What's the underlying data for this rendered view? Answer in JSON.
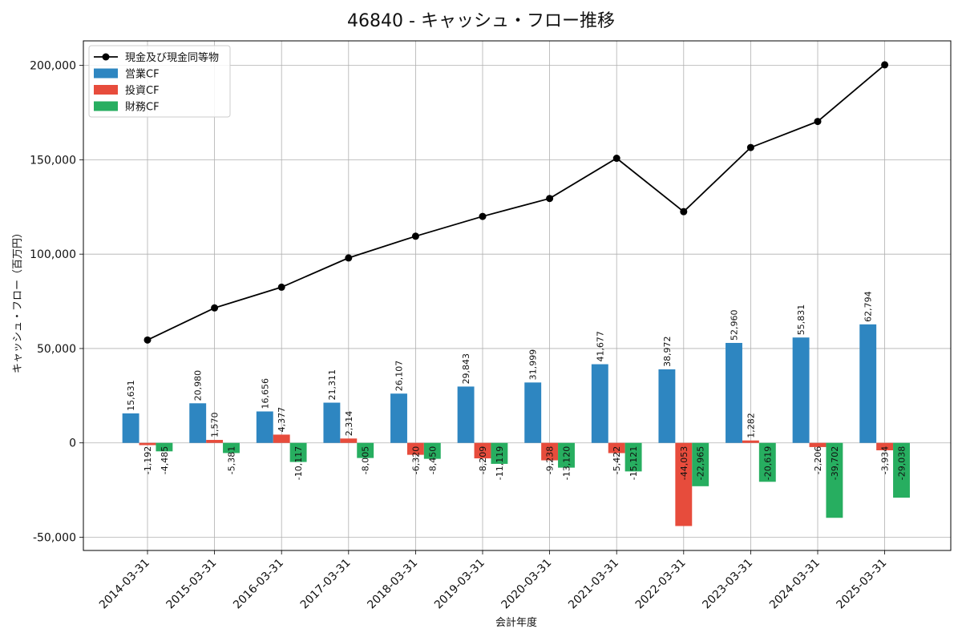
{
  "chart_data": {
    "type": "bar",
    "title": "46840 - キャッシュ・フロー推移",
    "xlabel": "会計年度",
    "ylabel": "キャッシュ・フロー（百万円）",
    "categories": [
      "2014-03-31",
      "2015-03-31",
      "2016-03-31",
      "2017-03-31",
      "2018-03-31",
      "2019-03-31",
      "2020-03-31",
      "2021-03-31",
      "2022-03-31",
      "2023-03-31",
      "2024-03-31",
      "2025-03-31"
    ],
    "ylim": [
      -57000,
      213000
    ],
    "yticks": [
      -50000,
      0,
      50000,
      100000,
      150000,
      200000
    ],
    "ytick_labels": [
      "-50,000",
      "0",
      "50,000",
      "100,000",
      "150,000",
      "200,000"
    ],
    "grid": true,
    "legend_position": "top-left",
    "series": [
      {
        "name": "営業CF",
        "kind": "bar",
        "color": "#2e86c1",
        "values": [
          15631,
          20980,
          16656,
          21311,
          26107,
          29843,
          31999,
          41677,
          38972,
          52960,
          55831,
          62794
        ],
        "labels": [
          "15,631",
          "20,980",
          "16,656",
          "21,311",
          "26,107",
          "29,843",
          "31,999",
          "41,677",
          "38,972",
          "52,960",
          "55,831",
          "62,794"
        ]
      },
      {
        "name": "投資CF",
        "kind": "bar",
        "color": "#e74c3c",
        "values": [
          -1192,
          1570,
          4377,
          2314,
          -6320,
          -8209,
          -9238,
          -5422,
          -44053,
          1282,
          -2206,
          -3934
        ],
        "labels": [
          "-1,192",
          "1,570",
          "4,377",
          "2,314",
          "-6,320",
          "-8,209",
          "-9,238",
          "-5,422",
          "-44,053",
          "1,282",
          "-2,206",
          "-3,934"
        ]
      },
      {
        "name": "財務CF",
        "kind": "bar",
        "color": "#27ae60",
        "values": [
          -4485,
          -5381,
          -10117,
          -8005,
          -8450,
          -11119,
          -13120,
          -15121,
          -22965,
          -20619,
          -39702,
          -29038
        ],
        "labels": [
          "-4,485",
          "-5,381",
          "-10,117",
          "-8,005",
          "-8,450",
          "-11,119",
          "-13,120",
          "-15,121",
          "-22,965",
          "-20,619",
          "-39,702",
          "-29,038"
        ]
      },
      {
        "name": "現金及び現金同等物",
        "kind": "line",
        "color": "#000000",
        "values": [
          54500,
          71500,
          82500,
          98000,
          109500,
          120000,
          129500,
          150800,
          122500,
          156500,
          170300,
          200300
        ]
      }
    ]
  }
}
